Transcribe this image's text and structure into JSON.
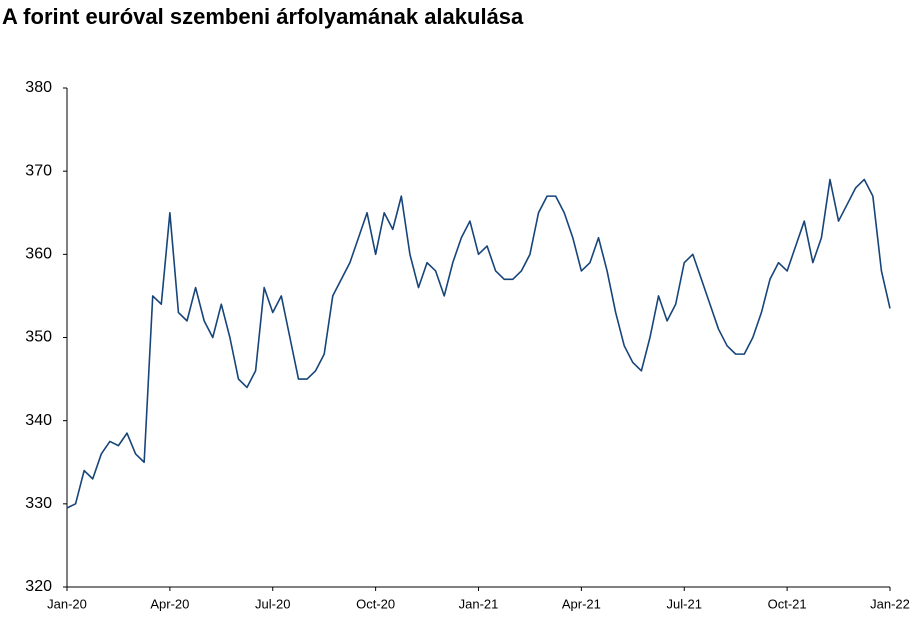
{
  "chart_data": {
    "type": "line",
    "title": "A forint euróval szembeni árfolyamának alakulása",
    "categories": [
      "Jan-20",
      null,
      null,
      null,
      null,
      null,
      null,
      null,
      null,
      null,
      null,
      null,
      "Apr-20",
      null,
      null,
      null,
      null,
      null,
      null,
      null,
      null,
      null,
      null,
      null,
      "Jul-20",
      null,
      null,
      null,
      null,
      null,
      null,
      null,
      null,
      null,
      null,
      null,
      "Oct-20",
      null,
      null,
      null,
      null,
      null,
      null,
      null,
      null,
      null,
      null,
      null,
      "Jan-21",
      null,
      null,
      null,
      null,
      null,
      null,
      null,
      null,
      null,
      null,
      null,
      "Apr-21",
      null,
      null,
      null,
      null,
      null,
      null,
      null,
      null,
      null,
      null,
      null,
      "Jul-21",
      null,
      null,
      null,
      null,
      null,
      null,
      null,
      null,
      null,
      null,
      null,
      "Oct-21",
      null,
      null,
      null,
      null,
      null,
      null,
      null,
      null,
      null,
      null,
      null,
      "Jan-22"
    ],
    "values": [
      329.5,
      330,
      334,
      333,
      336,
      337.5,
      337,
      338.5,
      336,
      335,
      355,
      354,
      365,
      353,
      352,
      356,
      352,
      350,
      354,
      350,
      345,
      344,
      346,
      356,
      353,
      355,
      350,
      345,
      345,
      346,
      348,
      355,
      357,
      359,
      362,
      365,
      360,
      365,
      363,
      367,
      360,
      356,
      359,
      358,
      355,
      359,
      362,
      364,
      360,
      361,
      358,
      357,
      357,
      358,
      360,
      365,
      367,
      367,
      365,
      362,
      358,
      359,
      362,
      358,
      353,
      349,
      347,
      346,
      350,
      355,
      352,
      354,
      359,
      360,
      357,
      354,
      351,
      349,
      348,
      348,
      350,
      353,
      357,
      359,
      358,
      361,
      364,
      359,
      362,
      369,
      364,
      366,
      368,
      369,
      367,
      358,
      353.5
    ],
    "color": "#17457a",
    "ylim": [
      320,
      380
    ],
    "yticks": [
      320,
      330,
      340,
      350,
      360,
      370,
      380
    ],
    "grid": false
  }
}
